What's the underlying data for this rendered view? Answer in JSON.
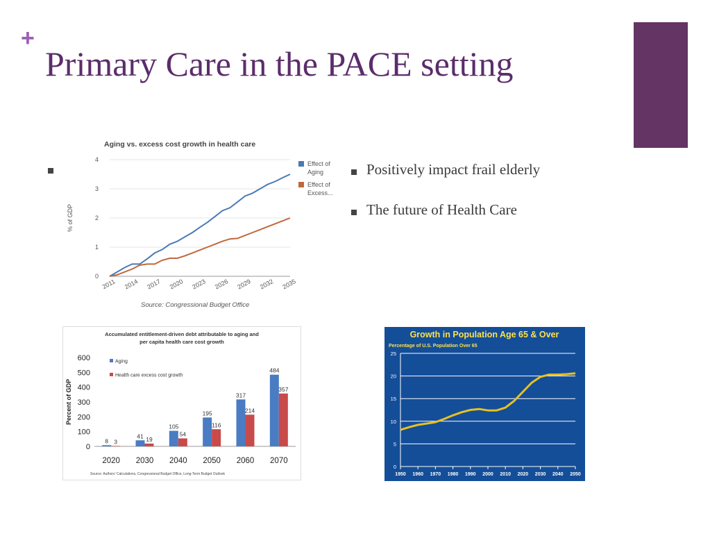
{
  "slide": {
    "plus": "+",
    "title": "Primary Care in the PACE setting",
    "accent_color": "#643464",
    "bullets": [
      "Positively impact frail elderly",
      "The future of Health Care"
    ]
  },
  "chart_data": [
    {
      "type": "line",
      "title": "Aging vs. excess cost growth in health care",
      "ylabel": "% of GDP",
      "x": [
        2011,
        2012,
        2013,
        2014,
        2015,
        2016,
        2017,
        2018,
        2019,
        2020,
        2021,
        2022,
        2023,
        2024,
        2025,
        2026,
        2027,
        2028,
        2029,
        2030,
        2031,
        2032,
        2033,
        2034,
        2035
      ],
      "xticks": [
        "2011",
        "2014",
        "2017",
        "2020",
        "2023",
        "2026",
        "2029",
        "2032",
        "2035"
      ],
      "ylim": [
        0,
        4
      ],
      "yticks": [
        "0",
        "1",
        "2",
        "3",
        "4"
      ],
      "series": [
        {
          "name": "Effect of Aging",
          "color": "#4a7ab5",
          "values": [
            0,
            0.15,
            0.3,
            0.42,
            0.42,
            0.6,
            0.8,
            0.92,
            1.1,
            1.2,
            1.35,
            1.5,
            1.68,
            1.85,
            2.05,
            2.25,
            2.35,
            2.55,
            2.75,
            2.85,
            3.0,
            3.15,
            3.25,
            3.38,
            3.5
          ]
        },
        {
          "name": "Effect of Excess...",
          "color": "#c0683a",
          "values": [
            0,
            0.05,
            0.15,
            0.25,
            0.38,
            0.42,
            0.42,
            0.55,
            0.62,
            0.62,
            0.7,
            0.8,
            0.9,
            1.0,
            1.1,
            1.2,
            1.28,
            1.3,
            1.4,
            1.5,
            1.6,
            1.7,
            1.8,
            1.9,
            2.0
          ]
        }
      ],
      "legend": "right",
      "source": "Source: Congressional Budget Office"
    },
    {
      "type": "bar",
      "title": "Accumulated entitlement-driven debt attributable to aging and per capita health care cost growth",
      "ylabel": "Percent of GDP",
      "categories": [
        "2020",
        "2030",
        "2040",
        "2050",
        "2060",
        "2070"
      ],
      "ylim": [
        0,
        600
      ],
      "yticks": [
        "0",
        "100",
        "200",
        "300",
        "400",
        "500",
        "600"
      ],
      "series": [
        {
          "name": "Aging",
          "color": "#4a7cc4",
          "values": [
            8,
            41,
            105,
            195,
            317,
            484
          ]
        },
        {
          "name": "Health care excess cost growth",
          "color": "#c94a4a",
          "values": [
            3,
            19,
            54,
            116,
            214,
            357
          ]
        }
      ],
      "legend": "top-left",
      "source": "Source: Authors' Calculations, Congressional Budget Office, Long-Term Budget Outlook"
    },
    {
      "type": "line",
      "title": "Growth in Population Age 65 & Over",
      "subtitle": "Percentage of U.S. Population Over 65",
      "x": [
        1950,
        1955,
        1960,
        1965,
        1970,
        1975,
        1980,
        1985,
        1990,
        1995,
        2000,
        2005,
        2010,
        2015,
        2020,
        2025,
        2030,
        2035,
        2040,
        2045,
        2050
      ],
      "xticks": [
        "1950",
        "1960",
        "1970",
        "1980",
        "1990",
        "2000",
        "2010",
        "2020",
        "2030",
        "2040",
        "2050"
      ],
      "ylim": [
        0,
        25
      ],
      "yticks": [
        "0",
        "5",
        "10",
        "15",
        "20",
        "25"
      ],
      "series": [
        {
          "color": "#e8c020",
          "values": [
            8.1,
            8.7,
            9.2,
            9.5,
            9.8,
            10.5,
            11.3,
            12.0,
            12.5,
            12.7,
            12.4,
            12.4,
            13.0,
            14.5,
            16.5,
            18.5,
            19.8,
            20.3,
            20.3,
            20.4,
            20.6
          ]
        }
      ],
      "background": "#144e98",
      "grid": true
    }
  ]
}
